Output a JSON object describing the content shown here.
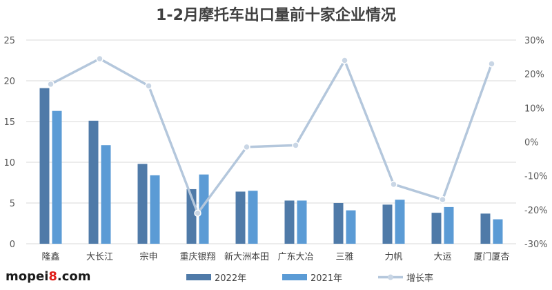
{
  "chart_data": {
    "type": "bar",
    "title": "1-2月摩托车出口量前十家企业情况",
    "categories": [
      "隆鑫",
      "大长江",
      "宗申",
      "重庆银翔",
      "新大洲本田",
      "广东大冶",
      "三雅",
      "力帆",
      "大运",
      "厦门厦杏"
    ],
    "series": [
      {
        "name": "2022年",
        "type": "bar",
        "axis": "left",
        "color": "#4f7aa8",
        "values": [
          19.1,
          15.1,
          9.8,
          6.7,
          6.4,
          5.3,
          5.0,
          4.8,
          3.8,
          3.7
        ]
      },
      {
        "name": "2021年",
        "type": "bar",
        "axis": "left",
        "color": "#5b9bd5",
        "values": [
          16.3,
          12.1,
          8.4,
          8.5,
          6.5,
          5.3,
          4.1,
          5.4,
          4.5,
          3.0
        ]
      },
      {
        "name": "增长率",
        "type": "line",
        "axis": "right",
        "color": "#b4c7dc",
        "values": [
          17,
          24.5,
          16.5,
          -21,
          -1.5,
          -1,
          24,
          -12.5,
          -17,
          23
        ]
      }
    ],
    "ylim": [
      0,
      25
    ],
    "yticks": [
      "0",
      "5",
      "10",
      "15",
      "20",
      "25"
    ],
    "y2lim": [
      -30,
      30
    ],
    "y2ticks": [
      "-30%",
      "-20%",
      "-10%",
      "0%",
      "10%",
      "20%",
      "30%"
    ],
    "grid": true,
    "legend": "bottom"
  },
  "watermark": {
    "prefix": "mopei",
    "digit": "8",
    "suffix": ".com"
  }
}
